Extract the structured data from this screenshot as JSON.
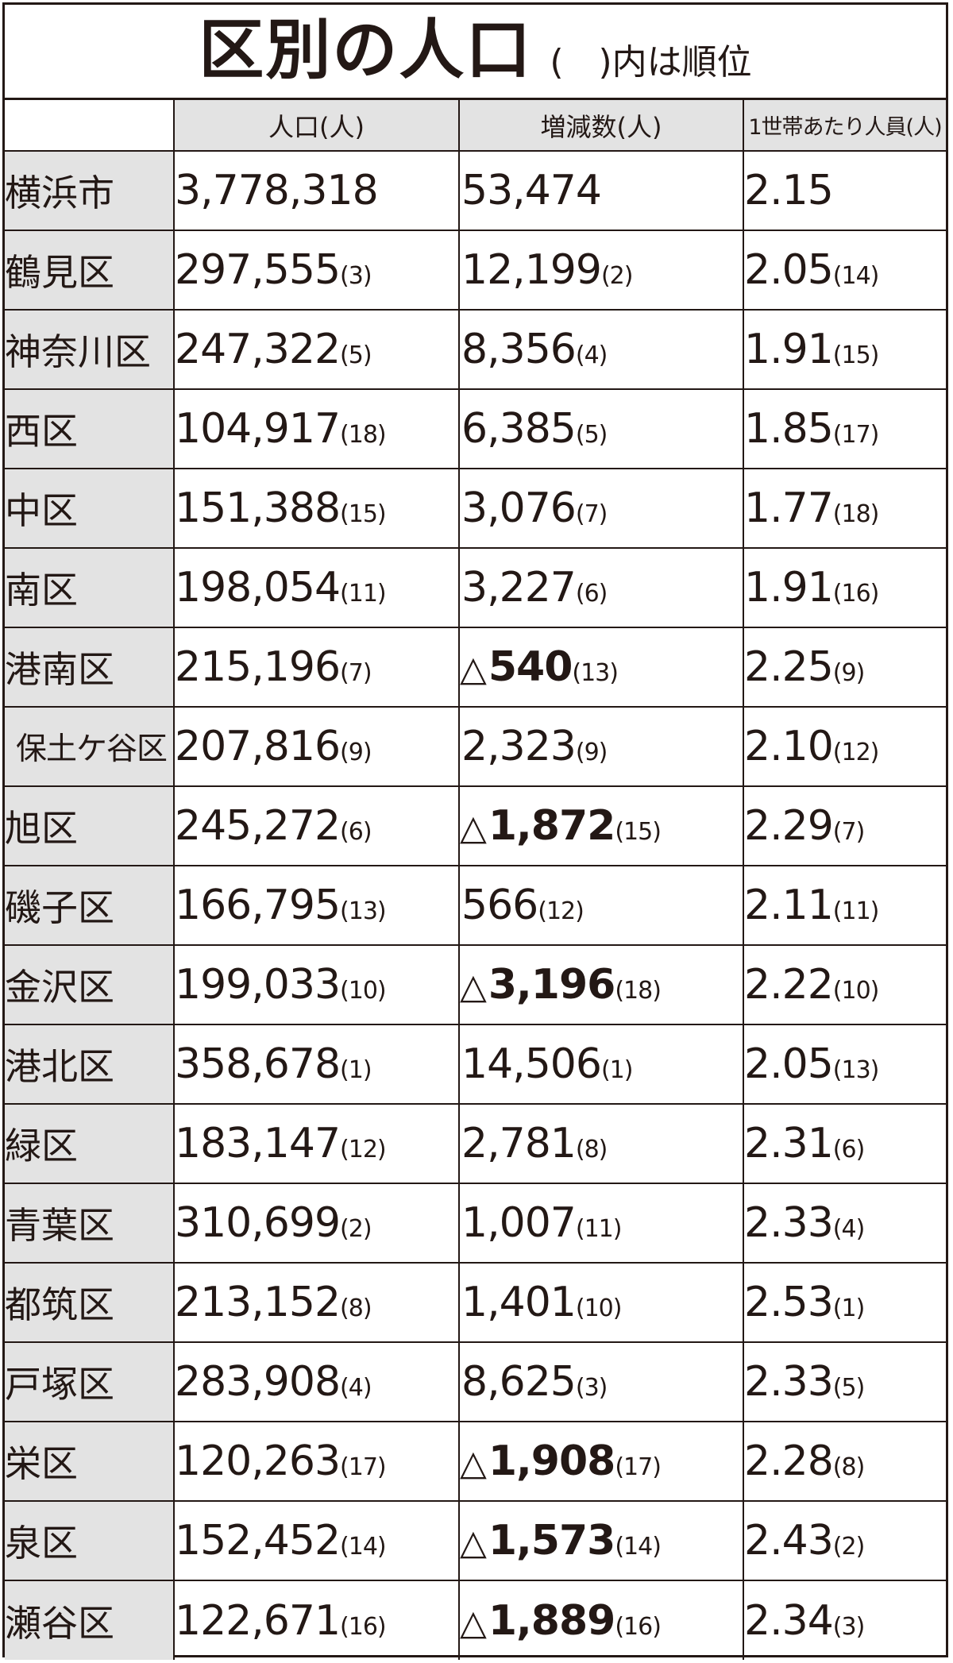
{
  "title": {
    "main": "区別の人口",
    "note": "(　)内は順位"
  },
  "headers": [
    "",
    "人口(人)",
    "増減数(人)",
    "1世帯あたり人員(人)"
  ],
  "rows": [
    {
      "name": "横浜市",
      "population": "3,778,318",
      "pop_rank": "",
      "change_sign": "",
      "change": "53,474",
      "change_rank": "",
      "household": "2.15",
      "hh_rank": ""
    },
    {
      "name": "鶴見区",
      "population": "297,555",
      "pop_rank": "(3)",
      "change_sign": "",
      "change": "12,199",
      "change_rank": "(2)",
      "household": "2.05",
      "hh_rank": "(14)"
    },
    {
      "name": "神奈川区",
      "population": "247,322",
      "pop_rank": "(5)",
      "change_sign": "",
      "change": "8,356",
      "change_rank": "(4)",
      "household": "1.91",
      "hh_rank": "(15)"
    },
    {
      "name": "西区",
      "population": "104,917",
      "pop_rank": "(18)",
      "change_sign": "",
      "change": "6,385",
      "change_rank": "(5)",
      "household": "1.85",
      "hh_rank": "(17)"
    },
    {
      "name": "中区",
      "population": "151,388",
      "pop_rank": "(15)",
      "change_sign": "",
      "change": "3,076",
      "change_rank": "(7)",
      "household": "1.77",
      "hh_rank": "(18)"
    },
    {
      "name": "南区",
      "population": "198,054",
      "pop_rank": "(11)",
      "change_sign": "",
      "change": "3,227",
      "change_rank": "(6)",
      "household": "1.91",
      "hh_rank": "(16)"
    },
    {
      "name": "港南区",
      "population": "215,196",
      "pop_rank": "(7)",
      "change_sign": "△",
      "change": "540",
      "change_rank": "(13)",
      "household": "2.25",
      "hh_rank": "(9)"
    },
    {
      "name": "保土ケ谷区",
      "population": "207,816",
      "pop_rank": "(9)",
      "change_sign": "",
      "change": "2,323",
      "change_rank": "(9)",
      "household": "2.10",
      "hh_rank": "(12)"
    },
    {
      "name": "旭区",
      "population": "245,272",
      "pop_rank": "(6)",
      "change_sign": "△",
      "change": "1,872",
      "change_rank": "(15)",
      "household": "2.29",
      "hh_rank": "(7)"
    },
    {
      "name": "磯子区",
      "population": "166,795",
      "pop_rank": "(13)",
      "change_sign": "",
      "change": "566",
      "change_rank": "(12)",
      "household": "2.11",
      "hh_rank": "(11)"
    },
    {
      "name": "金沢区",
      "population": "199,033",
      "pop_rank": "(10)",
      "change_sign": "△",
      "change": "3,196",
      "change_rank": "(18)",
      "household": "2.22",
      "hh_rank": "(10)"
    },
    {
      "name": "港北区",
      "population": "358,678",
      "pop_rank": "(1)",
      "change_sign": "",
      "change": "14,506",
      "change_rank": "(1)",
      "household": "2.05",
      "hh_rank": "(13)"
    },
    {
      "name": "緑区",
      "population": "183,147",
      "pop_rank": "(12)",
      "change_sign": "",
      "change": "2,781",
      "change_rank": "(8)",
      "household": "2.31",
      "hh_rank": "(6)"
    },
    {
      "name": "青葉区",
      "population": "310,699",
      "pop_rank": "(2)",
      "change_sign": "",
      "change": "1,007",
      "change_rank": "(11)",
      "household": "2.33",
      "hh_rank": "(4)"
    },
    {
      "name": "都筑区",
      "population": "213,152",
      "pop_rank": "(8)",
      "change_sign": "",
      "change": "1,401",
      "change_rank": "(10)",
      "household": "2.53",
      "hh_rank": "(1)"
    },
    {
      "name": "戸塚区",
      "population": "283,908",
      "pop_rank": "(4)",
      "change_sign": "",
      "change": "8,625",
      "change_rank": "(3)",
      "household": "2.33",
      "hh_rank": "(5)"
    },
    {
      "name": "栄区",
      "population": "120,263",
      "pop_rank": "(17)",
      "change_sign": "△",
      "change": "1,908",
      "change_rank": "(17)",
      "household": "2.28",
      "hh_rank": "(8)"
    },
    {
      "name": "泉区",
      "population": "152,452",
      "pop_rank": "(14)",
      "change_sign": "△",
      "change": "1,573",
      "change_rank": "(14)",
      "household": "2.43",
      "hh_rank": "(2)"
    },
    {
      "name": "瀬谷区",
      "population": "122,671",
      "pop_rank": "(16)",
      "change_sign": "△",
      "change": "1,889",
      "change_rank": "(16)",
      "household": "2.34",
      "hh_rank": "(3)"
    }
  ],
  "colors": {
    "ink": "#231815",
    "header_fill": "#e3e3e3",
    "background": "#ffffff"
  }
}
